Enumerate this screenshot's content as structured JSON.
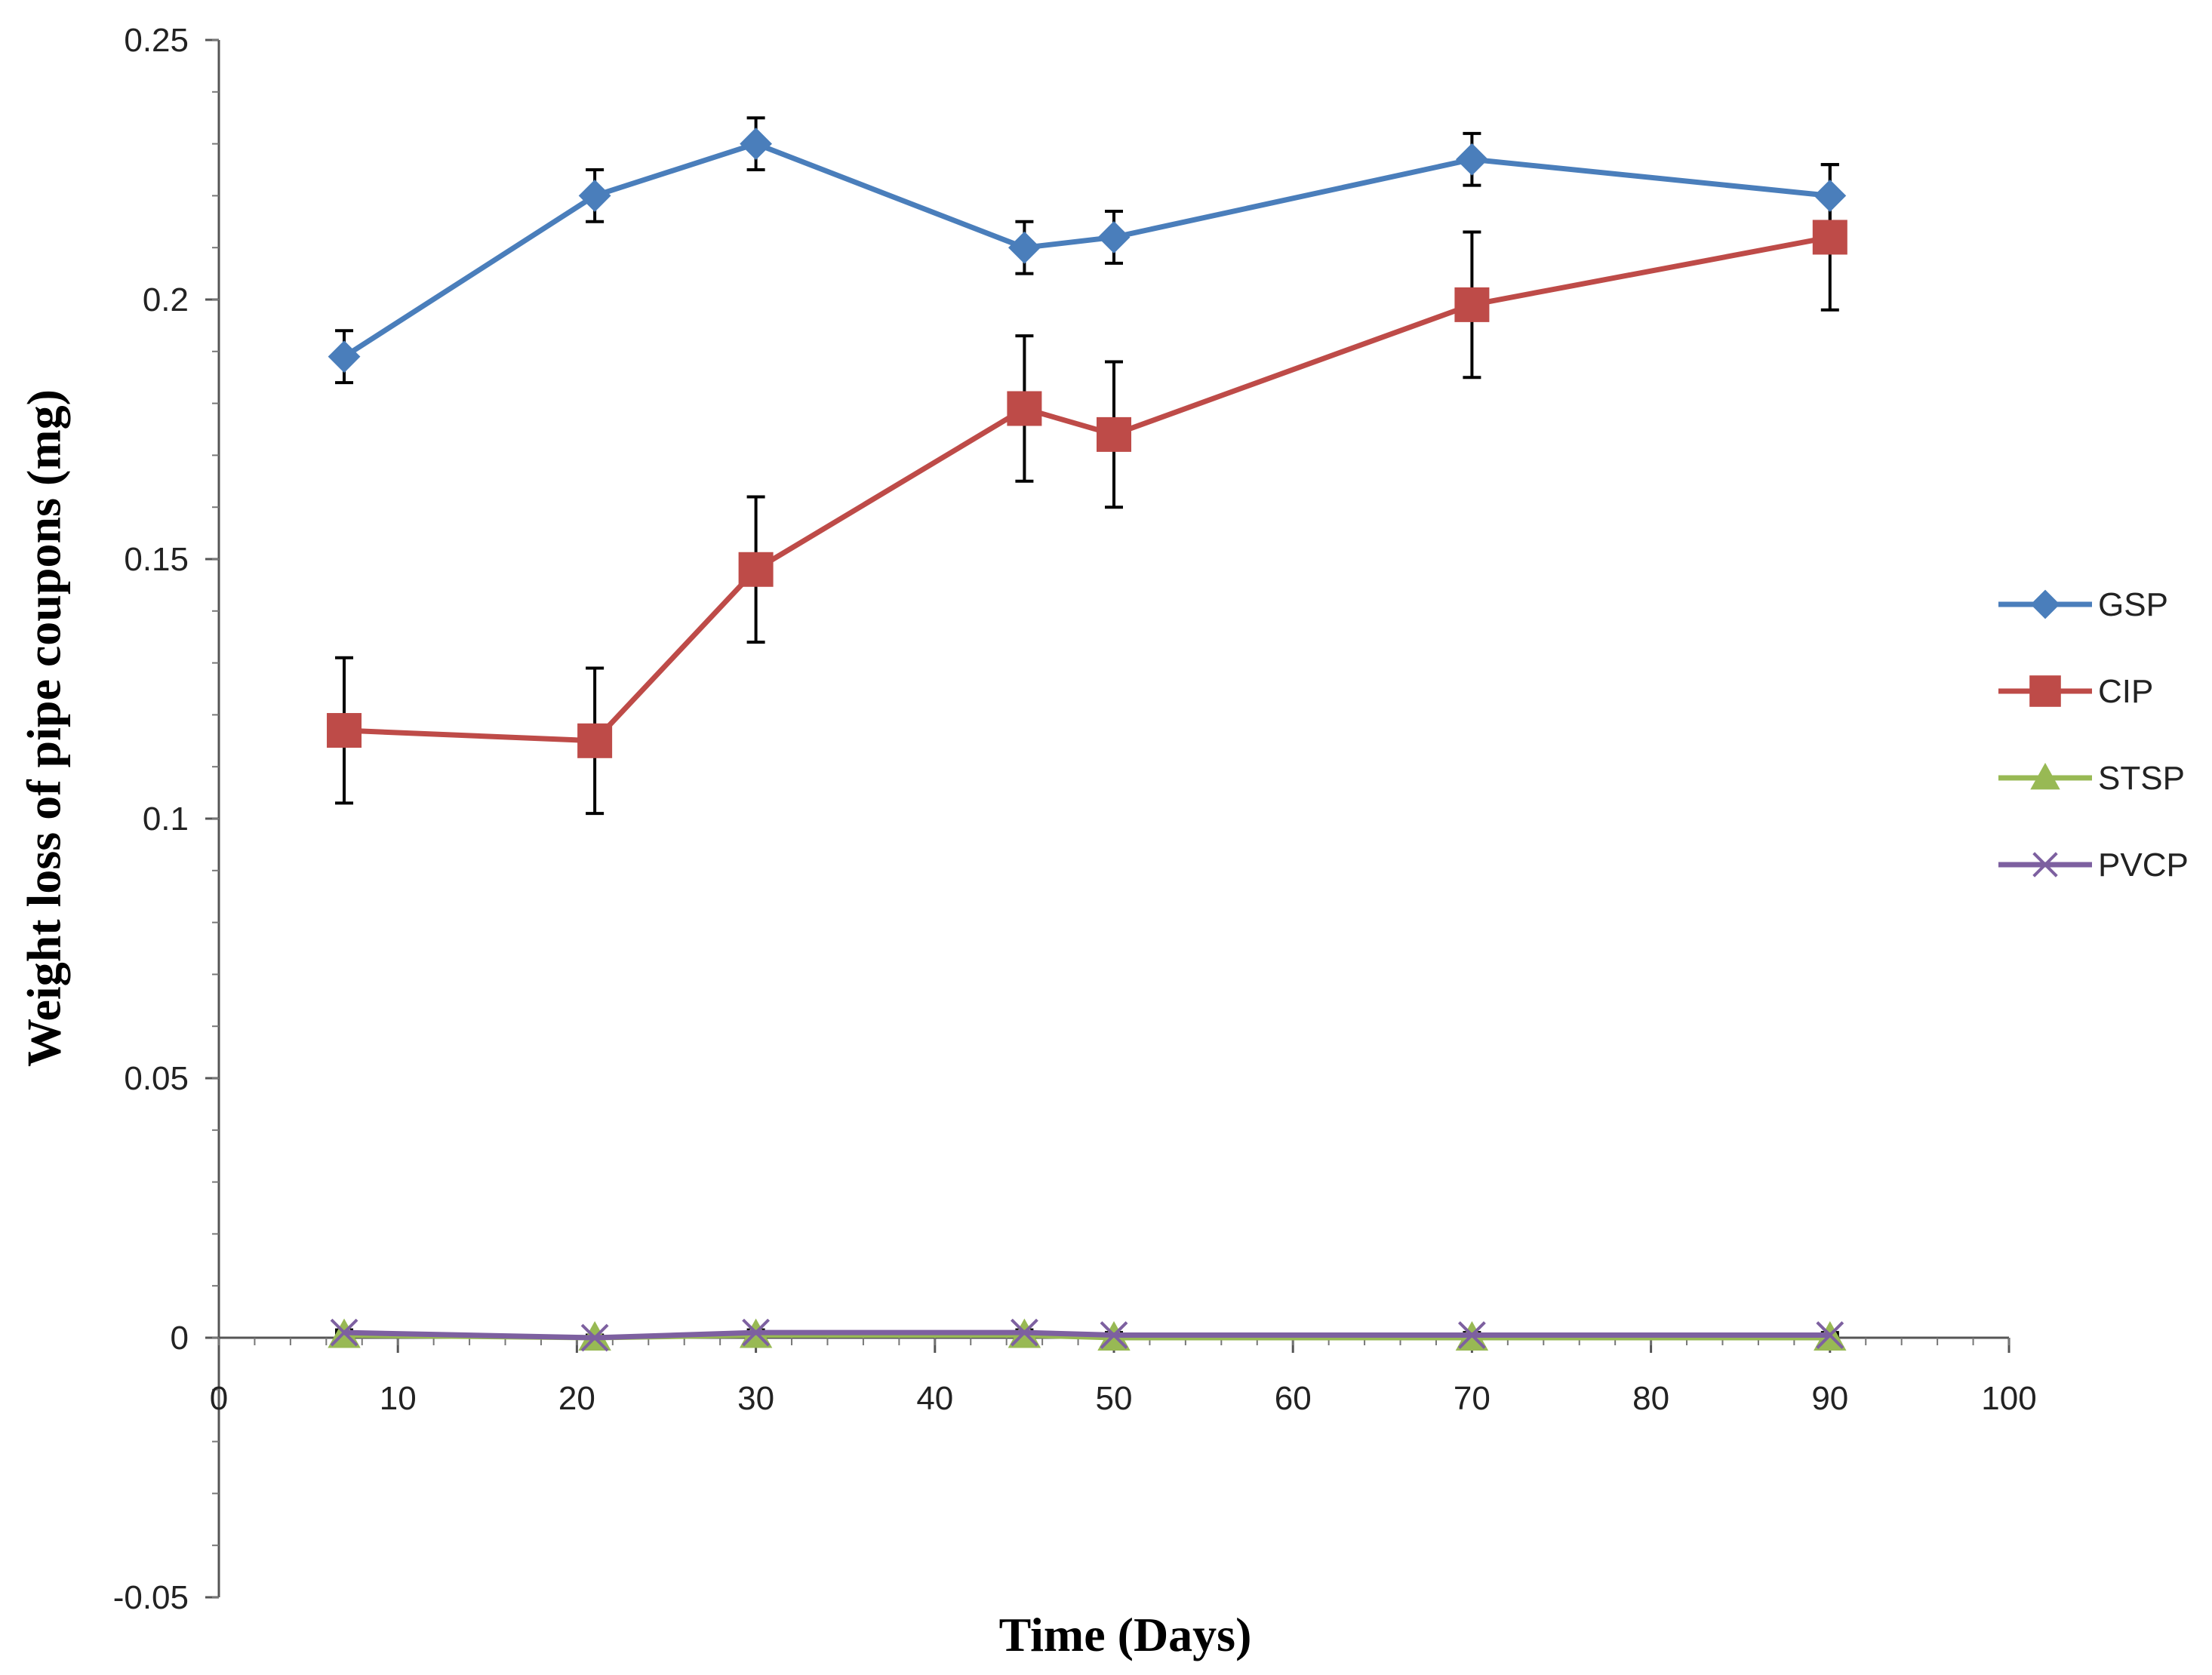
{
  "chart_data": {
    "type": "line",
    "title": "",
    "xlabel": "Time (Days)",
    "ylabel": "Weight loss of pipe coupons (mg)",
    "xlim": [
      0,
      100
    ],
    "ylim": [
      -0.05,
      0.25
    ],
    "x_ticks": [
      "0",
      "10",
      "20",
      "30",
      "40",
      "50",
      "60",
      "70",
      "80",
      "90",
      "100"
    ],
    "y_ticks": [
      "-0.05",
      "0",
      "0.05",
      "0.1",
      "0.15",
      "0.2",
      "0.25"
    ],
    "grid": false,
    "legend_position": "right",
    "series": [
      {
        "name": "GSP",
        "color": "#4A7EBB",
        "marker": "diamond",
        "x": [
          7,
          21,
          30,
          45,
          50,
          70,
          90
        ],
        "y": [
          0.189,
          0.22,
          0.23,
          0.21,
          0.212,
          0.227,
          0.22
        ],
        "error": [
          0.005,
          0.005,
          0.005,
          0.005,
          0.005,
          0.005,
          0.006
        ]
      },
      {
        "name": "CIP",
        "color": "#BE4B48",
        "marker": "square",
        "x": [
          7,
          21,
          30,
          45,
          50,
          70,
          90
        ],
        "y": [
          0.117,
          0.115,
          0.148,
          0.179,
          0.174,
          0.199,
          0.212
        ],
        "error": [
          0.014,
          0.014,
          0.014,
          0.014,
          0.014,
          0.014,
          0.014
        ]
      },
      {
        "name": "STSP",
        "color": "#98B954",
        "marker": "triangle",
        "x": [
          7,
          21,
          30,
          45,
          50,
          70,
          90
        ],
        "y": [
          0.0005,
          0.0,
          0.0005,
          0.0005,
          0.0,
          0.0,
          0.0
        ],
        "error": [
          0.0005,
          0.0005,
          0.0005,
          0.0005,
          0.0005,
          0.0005,
          0.0005
        ]
      },
      {
        "name": "PVCP",
        "color": "#7D60A0",
        "marker": "x",
        "x": [
          7,
          21,
          30,
          45,
          50,
          70,
          90
        ],
        "y": [
          0.001,
          0.0,
          0.001,
          0.001,
          0.0005,
          0.0005,
          0.0005
        ],
        "error": [
          0.0005,
          0.0005,
          0.0005,
          0.0005,
          0.0005,
          0.0005,
          0.0005
        ]
      }
    ]
  }
}
